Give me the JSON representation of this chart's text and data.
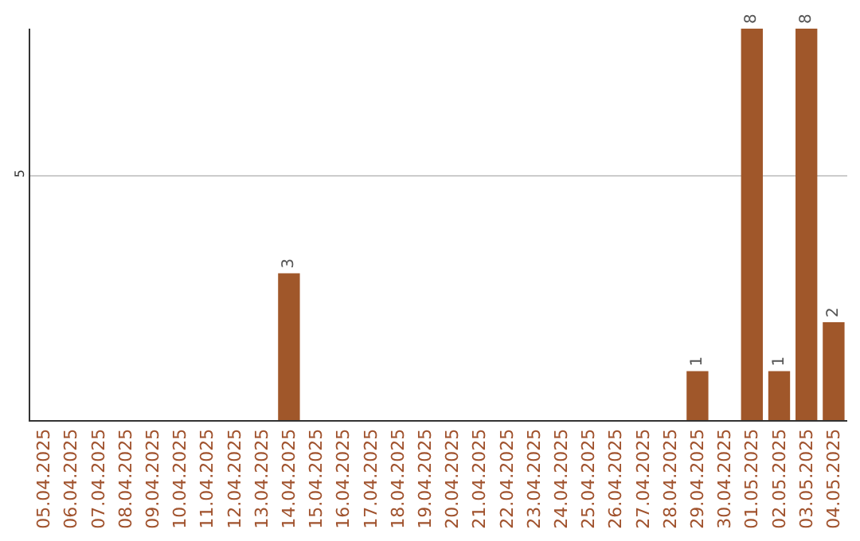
{
  "chart_data": {
    "type": "bar",
    "categories": [
      "05.04.2025",
      "06.04.2025",
      "07.04.2025",
      "08.04.2025",
      "09.04.2025",
      "10.04.2025",
      "11.04.2025",
      "12.04.2025",
      "13.04.2025",
      "14.04.2025",
      "15.04.2025",
      "16.04.2025",
      "17.04.2025",
      "18.04.2025",
      "19.04.2025",
      "20.04.2025",
      "21.04.2025",
      "22.04.2025",
      "23.04.2025",
      "24.04.2025",
      "25.04.2025",
      "26.04.2025",
      "27.04.2025",
      "28.04.2025",
      "29.04.2025",
      "30.04.2025",
      "01.05.2025",
      "02.05.2025",
      "03.05.2025",
      "04.05.2025"
    ],
    "values": [
      0,
      0,
      0,
      0,
      0,
      0,
      0,
      0,
      0,
      3,
      0,
      0,
      0,
      0,
      0,
      0,
      0,
      0,
      0,
      0,
      0,
      0,
      0,
      0,
      1,
      0,
      8,
      1,
      8,
      2
    ],
    "value_labels": [
      null,
      null,
      null,
      null,
      null,
      null,
      null,
      null,
      null,
      "3",
      null,
      null,
      null,
      null,
      null,
      null,
      null,
      null,
      null,
      null,
      null,
      null,
      null,
      null,
      "1",
      null,
      "8",
      "1",
      "8",
      "2"
    ],
    "color": "#a0572a",
    "ylim": [
      0,
      8
    ],
    "yticks": [
      5
    ],
    "grid": "y",
    "legend": false
  }
}
